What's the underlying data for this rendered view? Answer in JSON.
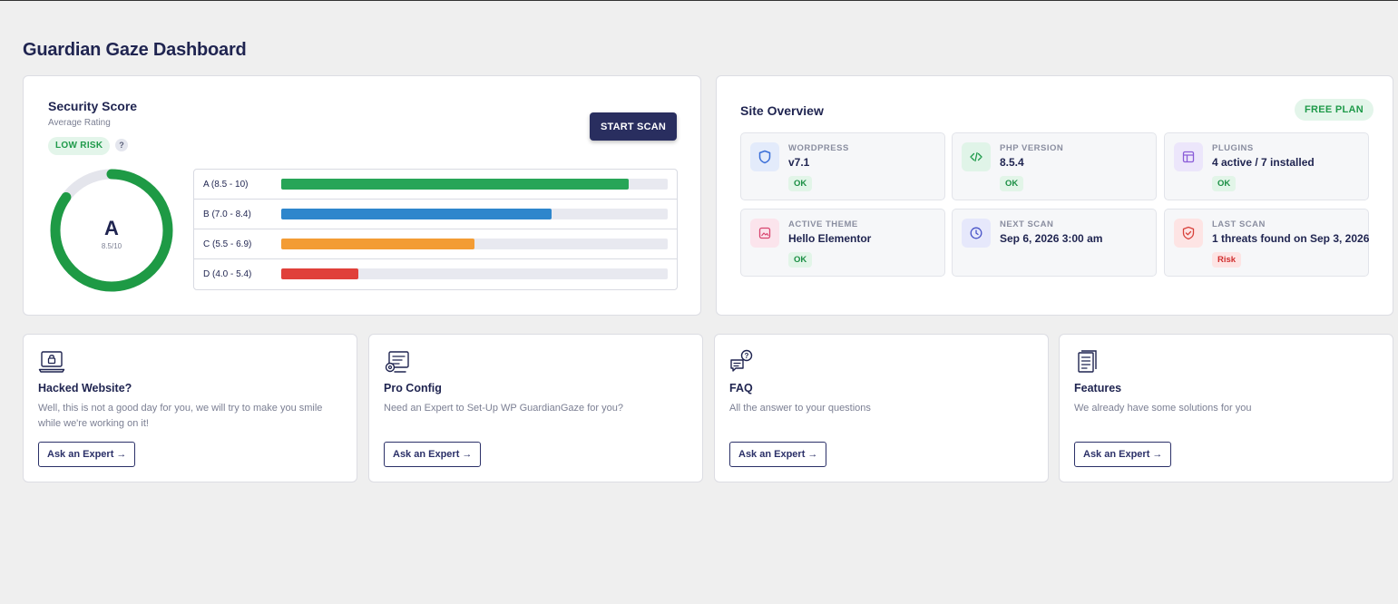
{
  "page": {
    "title": "Guardian Gaze Dashboard"
  },
  "score": {
    "title": "Security Score",
    "subtitle": "Average Rating",
    "risk_label": "LOW RISK",
    "help_glyph": "?",
    "scan_button": "START SCAN",
    "grade": "A",
    "score_text": "8.5/10",
    "score_fraction": 0.85,
    "gauge_color": "#1e9a45",
    "grades": [
      {
        "label": "A (8.5 - 10)",
        "fill": 0.9,
        "color": "#27a557"
      },
      {
        "label": "B (7.0 - 8.4)",
        "fill": 0.7,
        "color": "#2e86cc"
      },
      {
        "label": "C (5.5 - 6.9)",
        "fill": 0.5,
        "color": "#f39c34"
      },
      {
        "label": "D (4.0 - 5.4)",
        "fill": 0.2,
        "color": "#e0403a"
      }
    ]
  },
  "overview": {
    "title": "Site Overview",
    "plan_badge": "FREE PLAN",
    "tiles": [
      {
        "label": "WORDPRESS",
        "value": "v7.1",
        "status": "OK",
        "status_type": "ok",
        "icon": "shield-icon",
        "icon_bg": "#e3ebfb",
        "icon_color": "#3b6fd8"
      },
      {
        "label": "PHP VERSION",
        "value": "8.5.4",
        "status": "OK",
        "status_type": "ok",
        "icon": "code-icon",
        "icon_bg": "#e0f4e8",
        "icon_color": "#1f9a4a"
      },
      {
        "label": "PLUGINS",
        "value": "4 active / 7 installed",
        "status": "OK",
        "status_type": "ok",
        "icon": "plugins-icon",
        "icon_bg": "#ece6fb",
        "icon_color": "#8a5cd8"
      },
      {
        "label": "ACTIVE THEME",
        "value": "Hello Elementor",
        "status": "OK",
        "status_type": "ok",
        "icon": "theme-icon",
        "icon_bg": "#fbe4ec",
        "icon_color": "#d8456f"
      },
      {
        "label": "NEXT SCAN",
        "value": "Sep 6, 2026 3:00 am",
        "status": "",
        "status_type": "none",
        "icon": "clock-icon",
        "icon_bg": "#e6e8fb",
        "icon_color": "#4a55c8"
      },
      {
        "label": "LAST SCAN",
        "value": "1 threats found on Sep 3, 2026",
        "status": "Risk",
        "status_type": "risk",
        "icon": "shield-check-icon",
        "icon_bg": "#fde4e4",
        "icon_color": "#d8403a"
      }
    ]
  },
  "help_cards": [
    {
      "title": "Hacked Website?",
      "description": "Well, this is not a good day for you, we will try to make you smile while we're working on it!",
      "button": "Ask an Expert →",
      "icon": "laptop-lock-icon"
    },
    {
      "title": "Pro Config",
      "description": "Need an Expert to Set-Up WP GuardianGaze for you?",
      "button": "Ask an Expert →",
      "icon": "config-icon"
    },
    {
      "title": "FAQ",
      "description": "All the answer to your questions",
      "button": "Ask an Expert →",
      "icon": "faq-icon"
    },
    {
      "title": "Features",
      "description": "We already have some solutions for you",
      "button": "Ask an Expert →",
      "icon": "document-icon"
    }
  ]
}
